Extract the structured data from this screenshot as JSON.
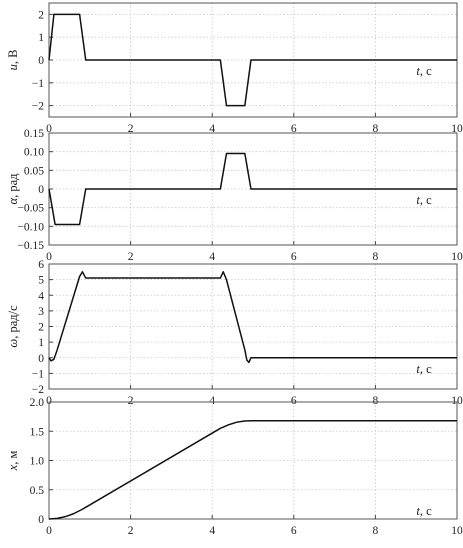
{
  "chart_data": [
    {
      "type": "line",
      "ylabel_var": "u",
      "ylabel_unit": ", В",
      "xlabel_var": "t",
      "xlabel_unit": ", с",
      "xlim": [
        0,
        10
      ],
      "ylim": [
        -2.5,
        2.5
      ],
      "xticks": [
        "0",
        "2",
        "4",
        "6",
        "8",
        "10"
      ],
      "yticks": [
        "2",
        "1",
        "0",
        "−1",
        "−2"
      ],
      "ytick_values": [
        2,
        1,
        0,
        -1,
        -2
      ],
      "grid": true,
      "series": [
        {
          "x": [
            0,
            0.12,
            0.75,
            0.9,
            4.2,
            4.35,
            4.8,
            4.95,
            10
          ],
          "y": [
            0,
            2,
            2,
            0,
            0,
            -2,
            -2,
            0,
            0
          ]
        }
      ]
    },
    {
      "type": "line",
      "ylabel_var": "α",
      "ylabel_unit": ", рад",
      "xlabel_var": "t",
      "xlabel_unit": ", с",
      "xlim": [
        0,
        10
      ],
      "ylim": [
        -0.15,
        0.15
      ],
      "xticks": [
        "0",
        "2",
        "4",
        "6",
        "8",
        "10"
      ],
      "yticks": [
        "0.15",
        "0.10",
        "0.05",
        "0",
        "−0.05",
        "−0.10",
        "−0.15"
      ],
      "ytick_values": [
        0.15,
        0.1,
        0.05,
        0,
        -0.05,
        -0.1,
        -0.15
      ],
      "grid": true,
      "series": [
        {
          "x": [
            0,
            0.15,
            0.75,
            0.9,
            4.2,
            4.35,
            4.8,
            4.95,
            10
          ],
          "y": [
            0,
            -0.095,
            -0.095,
            0,
            0,
            0.095,
            0.095,
            0,
            0
          ]
        }
      ]
    },
    {
      "type": "line",
      "ylabel_var": "ω",
      "ylabel_unit": ", рад/с",
      "xlabel_var": "t",
      "xlabel_unit": ", с",
      "xlim": [
        0,
        10
      ],
      "ylim": [
        -2,
        6
      ],
      "xticks": [
        "0",
        "2",
        "4",
        "6",
        "8",
        "10"
      ],
      "yticks": [
        "6",
        "5",
        "4",
        "3",
        "2",
        "1",
        "0",
        "−1",
        "−2"
      ],
      "ytick_values": [
        6,
        5,
        4,
        3,
        2,
        1,
        0,
        -1,
        -2
      ],
      "grid": true,
      "series": [
        {
          "x": [
            0,
            0.05,
            0.12,
            0.2,
            0.75,
            0.82,
            0.9,
            4.2,
            4.27,
            4.35,
            4.8,
            4.85,
            4.9,
            4.95,
            10
          ],
          "y": [
            0,
            -0.2,
            -0.1,
            0.5,
            5.2,
            5.5,
            5.1,
            5.1,
            5.5,
            5.0,
            0.5,
            -0.15,
            -0.3,
            0,
            0
          ]
        }
      ]
    },
    {
      "type": "line",
      "ylabel_var": "x",
      "ylabel_unit": ", м",
      "xlabel_var": "t",
      "xlabel_unit": ", с",
      "xlim": [
        0,
        10
      ],
      "ylim": [
        0,
        2.0
      ],
      "xticks": [
        "0",
        "2",
        "4",
        "6",
        "8",
        "10"
      ],
      "yticks": [
        "2.0",
        "1.5",
        "1.0",
        "0.5",
        "0"
      ],
      "ytick_values": [
        2.0,
        1.5,
        1.0,
        0.5,
        0
      ],
      "grid": true,
      "series": [
        {
          "x": [
            0,
            0.2,
            0.4,
            0.6,
            0.8,
            0.9,
            4.2,
            4.4,
            4.6,
            4.8,
            4.95,
            10
          ],
          "y": [
            0,
            0.01,
            0.04,
            0.09,
            0.16,
            0.2,
            1.55,
            1.61,
            1.655,
            1.675,
            1.68,
            1.68
          ]
        }
      ]
    }
  ]
}
